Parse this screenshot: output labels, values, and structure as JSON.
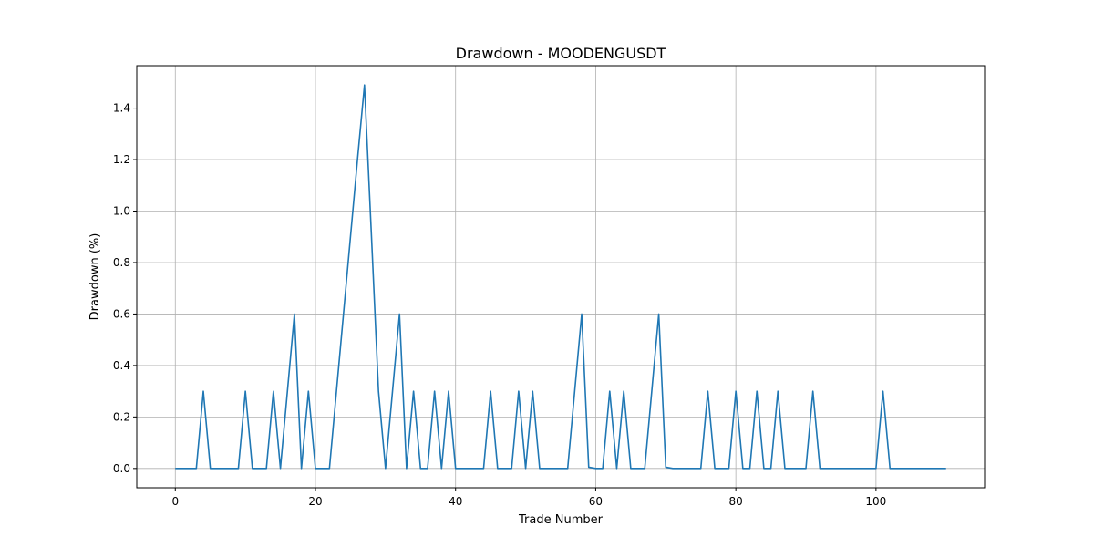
{
  "chart_data": {
    "type": "line",
    "title": "Drawdown - MOODENGUSDT",
    "xlabel": "Trade Number",
    "ylabel": "Drawdown (%)",
    "xlim": [
      -5.5,
      115.5
    ],
    "ylim": [
      -0.075,
      1.565
    ],
    "xticks": [
      0,
      20,
      40,
      60,
      80,
      100
    ],
    "yticks": [
      0.0,
      0.2,
      0.4,
      0.6,
      0.8,
      1.0,
      1.2,
      1.4
    ],
    "grid": true,
    "line_color": "#1f77b4",
    "series": [
      {
        "x": [
          0,
          1,
          2,
          3,
          4,
          5,
          6,
          7,
          8,
          9,
          10,
          11,
          12,
          13,
          14,
          15,
          16,
          17,
          18,
          19,
          20,
          21,
          22,
          23,
          24,
          25,
          26,
          27,
          28,
          29,
          30,
          31,
          32,
          33,
          34,
          35,
          36,
          37,
          38,
          39,
          40,
          41,
          42,
          43,
          44,
          45,
          46,
          47,
          48,
          49,
          50,
          51,
          52,
          53,
          54,
          55,
          56,
          57,
          58,
          59,
          60,
          61,
          62,
          63,
          64,
          65,
          66,
          67,
          68,
          69,
          70,
          71,
          72,
          73,
          74,
          75,
          76,
          77,
          78,
          79,
          80,
          81,
          82,
          83,
          84,
          85,
          86,
          87,
          88,
          89,
          90,
          91,
          92,
          93,
          94,
          95,
          96,
          97,
          98,
          99,
          100,
          101,
          102,
          103,
          104,
          105,
          106,
          107,
          108,
          109,
          110
        ],
        "values": [
          0,
          0,
          0,
          0,
          0.3,
          0,
          0,
          0,
          0,
          0,
          0.3,
          0,
          0,
          0,
          0.3,
          0,
          0.3,
          0.6,
          0,
          0.3,
          0,
          0,
          0,
          0.3,
          0.6,
          0.9,
          1.2,
          1.49,
          0.9,
          0.3,
          0,
          0.3,
          0.6,
          0,
          0.3,
          0,
          0,
          0.3,
          0,
          0.3,
          0,
          0,
          0,
          0,
          0,
          0.3,
          0,
          0,
          0,
          0.3,
          0,
          0.3,
          0,
          0,
          0,
          0,
          0,
          0.3,
          0.6,
          0.005,
          0,
          0,
          0.3,
          0,
          0.3,
          0,
          0,
          0,
          0.3,
          0.6,
          0.005,
          0,
          0,
          0,
          0,
          0,
          0.3,
          0,
          0,
          0,
          0.3,
          0,
          0,
          0.3,
          0,
          0,
          0.3,
          0,
          0,
          0,
          0,
          0.3,
          0,
          0,
          0,
          0,
          0,
          0,
          0,
          0,
          0,
          0.3,
          0,
          0,
          0,
          0,
          0,
          0,
          0,
          0,
          0
        ]
      }
    ]
  }
}
